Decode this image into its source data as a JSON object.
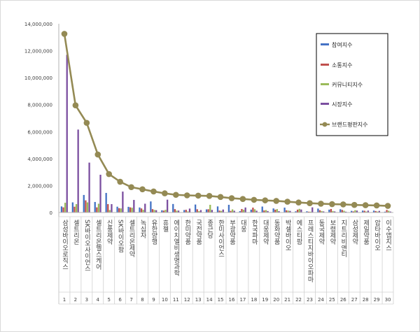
{
  "chart_data": {
    "type": "bar",
    "categories": [
      "삼성바이오로직스",
      "셀트리온",
      "SK바이오사이언스",
      "셀트리온헬스케어",
      "신풍제약",
      "SK바이오팜",
      "셀트리온제약",
      "녹십자",
      "유한양행",
      "휴젤",
      "에이치엘비생명과학",
      "한미약품",
      "국전약품",
      "종근당",
      "한미사이언스",
      "부광약품",
      "대웅",
      "한국파마",
      "대웅제약",
      "동화약품",
      "박셀바이오",
      "에스티팜",
      "프레스티지바이오파마",
      "동국제약",
      "보령제약",
      "지트리비앤티",
      "삼성제약",
      "제일약품",
      "압타바이오",
      "이수앱지스"
    ],
    "rank_labels": [
      "1",
      "2",
      "3",
      "4",
      "5",
      "6",
      "7",
      "8",
      "9",
      "10",
      "11",
      "12",
      "13",
      "14",
      "15",
      "16",
      "17",
      "18",
      "19",
      "20",
      "21",
      "22",
      "23",
      "24",
      "25",
      "26",
      "27",
      "28",
      "29",
      "30"
    ],
    "series": [
      {
        "name": "참여지수",
        "color": "#4472c4",
        "values": [
          450000,
          750000,
          1300000,
          780000,
          1450000,
          430000,
          420000,
          370000,
          820000,
          160000,
          630000,
          180000,
          590000,
          230000,
          450000,
          570000,
          100000,
          210000,
          440000,
          300000,
          360000,
          90000,
          90000,
          290000,
          210000,
          240000,
          120000,
          140000,
          140000,
          60000
        ]
      },
      {
        "name": "소통지수",
        "color": "#c0504d",
        "values": [
          380000,
          430000,
          900000,
          380000,
          620000,
          320000,
          380000,
          300000,
          250000,
          140000,
          250000,
          200000,
          240000,
          240000,
          140000,
          120000,
          260000,
          360000,
          150000,
          210000,
          160000,
          210000,
          60000,
          170000,
          260000,
          190000,
          80000,
          130000,
          110000,
          190000
        ]
      },
      {
        "name": "커뮤니티지수",
        "color": "#9bbb59",
        "values": [
          720000,
          620000,
          750000,
          650000,
          180000,
          300000,
          350000,
          200000,
          190000,
          200000,
          140000,
          80000,
          100000,
          570000,
          120000,
          230000,
          200000,
          240000,
          180000,
          250000,
          140000,
          270000,
          60000,
          110000,
          110000,
          130000,
          170000,
          70000,
          70000,
          130000
        ]
      },
      {
        "name": "시장지수",
        "color": "#7b4fa0",
        "values": [
          11700000,
          6150000,
          3700000,
          2800000,
          620000,
          1550000,
          930000,
          650000,
          170000,
          950000,
          140000,
          290000,
          180000,
          190000,
          220000,
          130000,
          370000,
          130000,
          110000,
          100000,
          120000,
          220000,
          380000,
          80000,
          80000,
          60000,
          140000,
          140000,
          120000,
          70000
        ]
      }
    ],
    "line": {
      "name": "브랜드평판지수",
      "color": "#948a54",
      "values": [
        13250000,
        7950000,
        6650000,
        4300000,
        2850000,
        2280000,
        1880000,
        1720000,
        1560000,
        1420000,
        1310000,
        1270000,
        1250000,
        1230000,
        1150000,
        1060000,
        1000000,
        940000,
        900000,
        860000,
        800000,
        740000,
        690000,
        650000,
        620000,
        600000,
        560000,
        540000,
        520000,
        490000
      ]
    },
    "y_ticks": [
      "0",
      "2,000,000",
      "4,000,000",
      "6,000,000",
      "8,000,000",
      "10,000,000",
      "12,000,000",
      "14,000,000"
    ],
    "ylim": [
      0,
      14000000
    ],
    "legend_position": "top-right",
    "grid": false
  }
}
